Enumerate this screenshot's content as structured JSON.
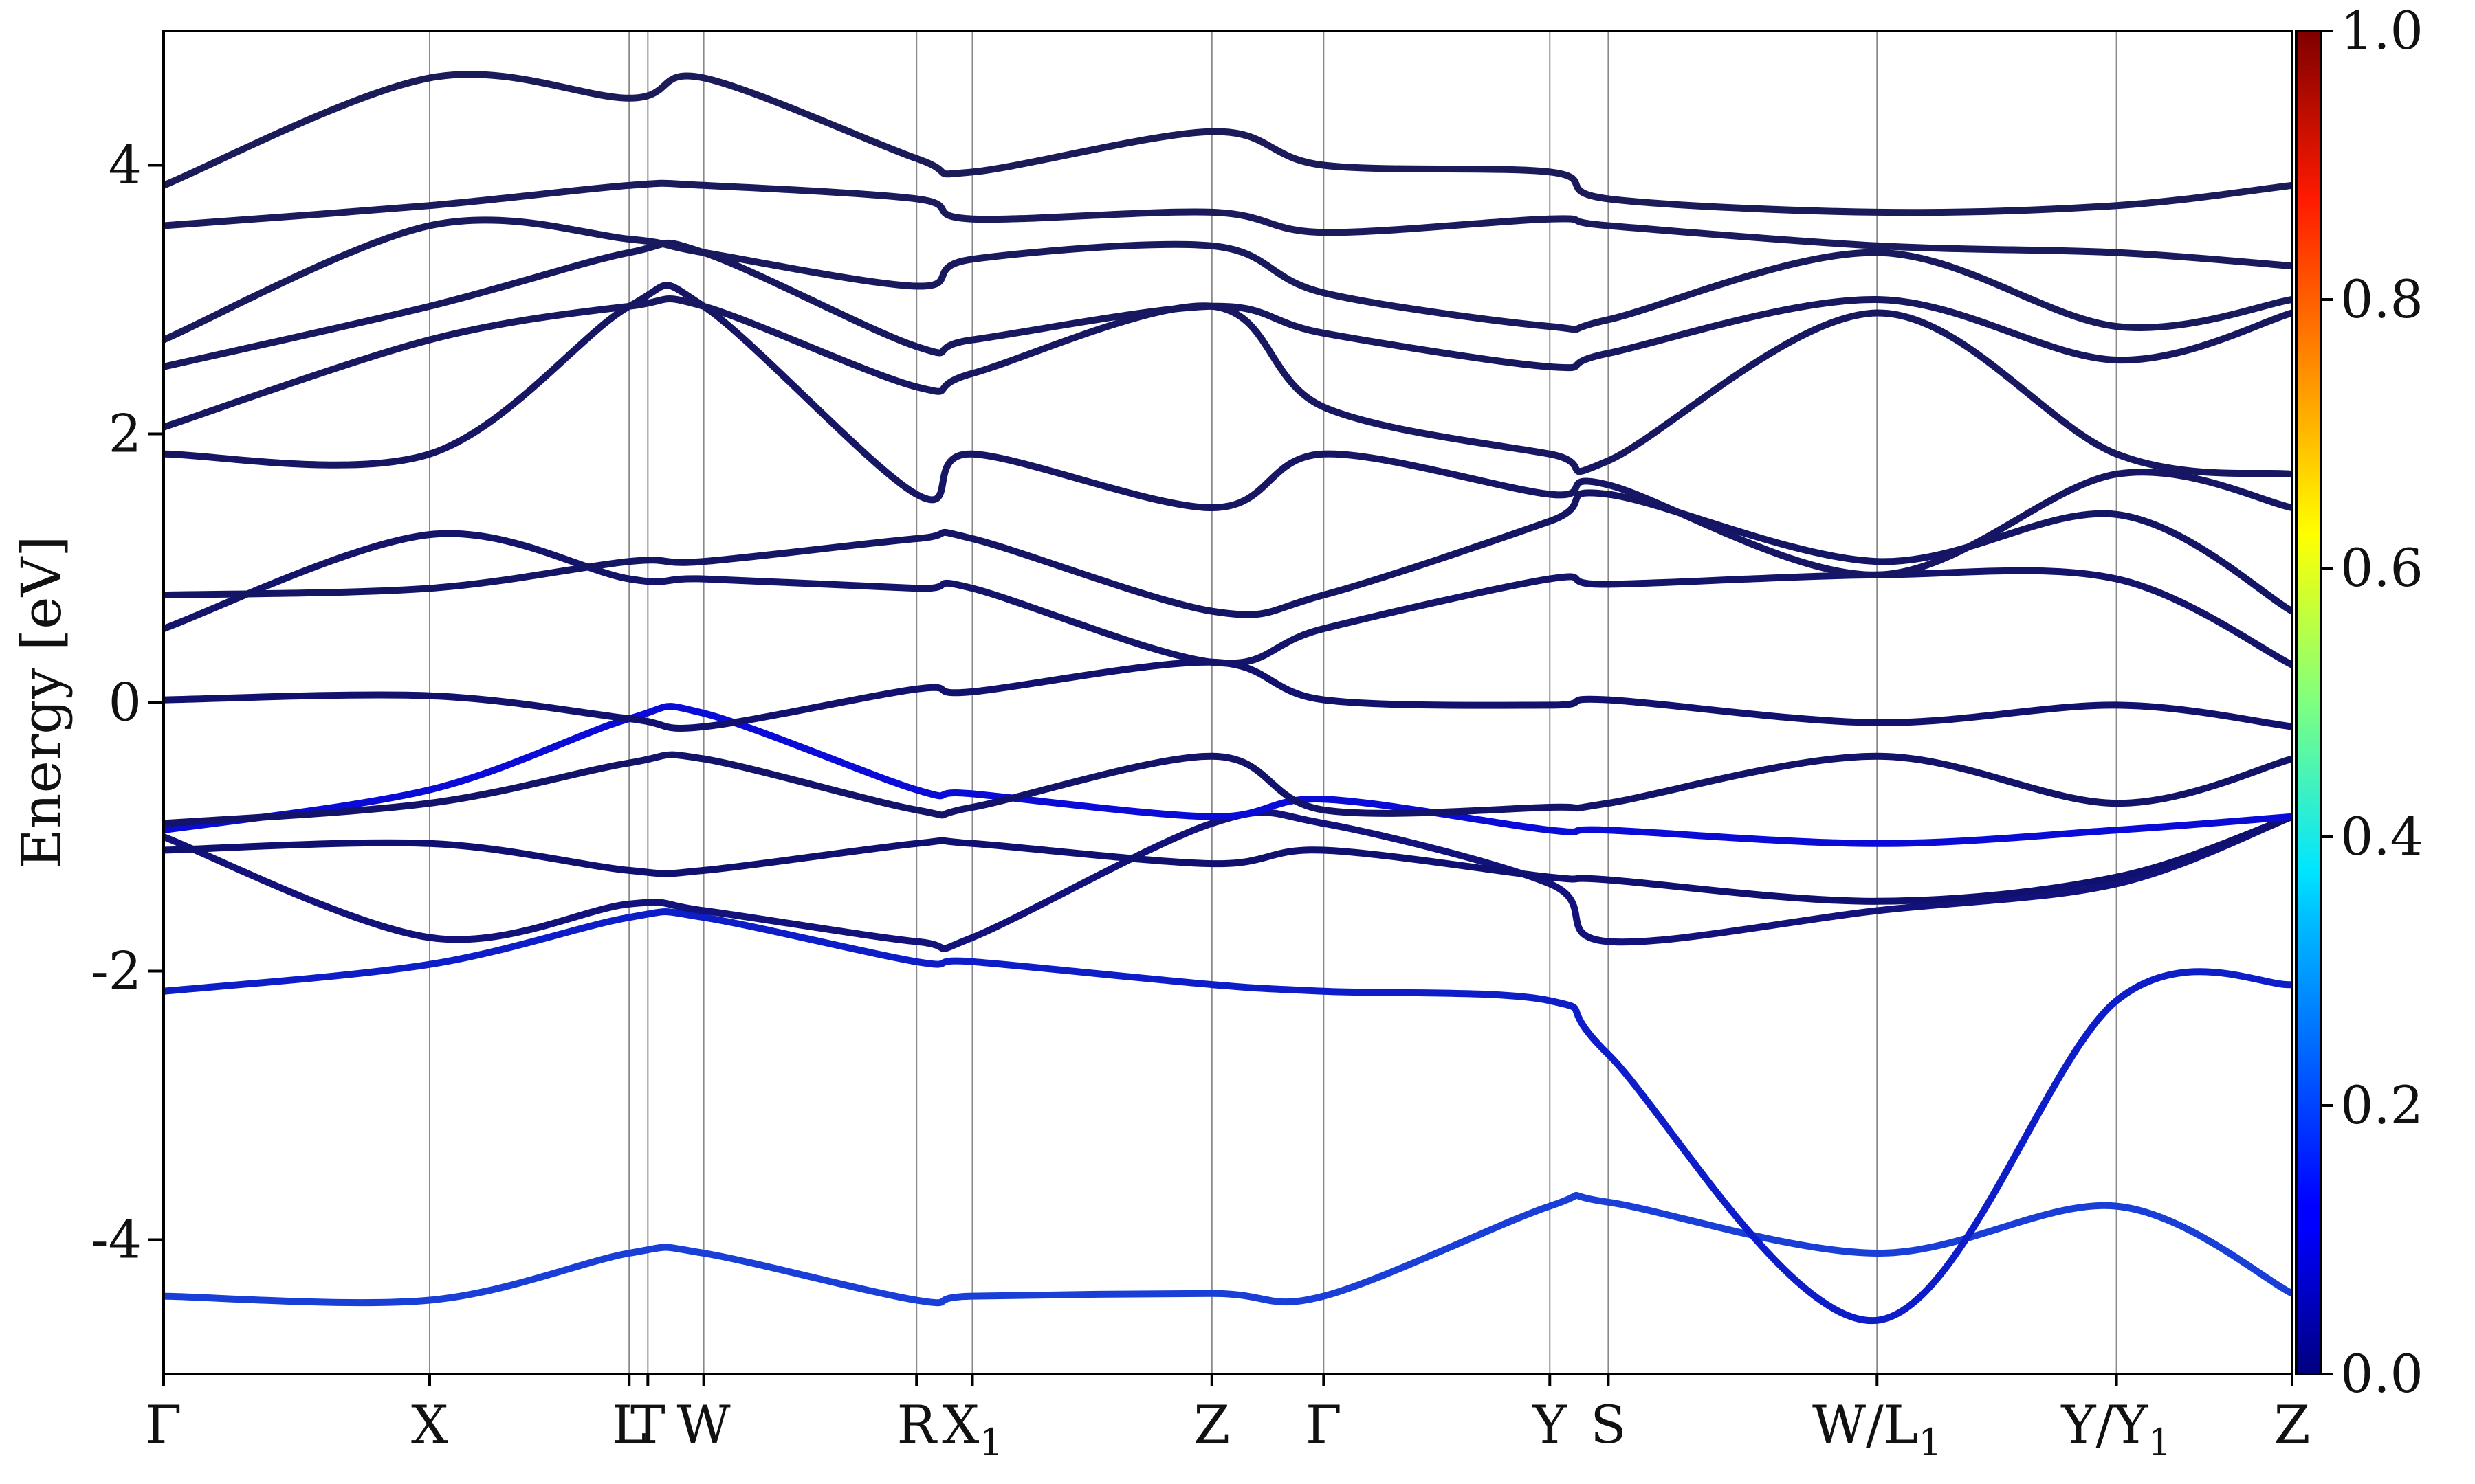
{
  "chart_data": {
    "type": "line",
    "title": "",
    "xlabel": "",
    "ylabel": "Energy [eV]",
    "ylim": [
      -5,
      5
    ],
    "yticks": [
      -4,
      -2,
      0,
      2,
      4
    ],
    "colorbar": {
      "colormap": "jet",
      "range": [
        0.0,
        1.0
      ],
      "ticks": [
        "0.0",
        "0.2",
        "0.4",
        "0.6",
        "0.8",
        "1.0"
      ]
    },
    "kpath": [
      {
        "label": "Γ",
        "sub": "",
        "pos": 0.0
      },
      {
        "label": "X",
        "sub": "",
        "pos": 1.0
      },
      {
        "label": "L",
        "sub": "",
        "pos": 1.75
      },
      {
        "label": "T",
        "sub": "",
        "pos": 1.82
      },
      {
        "label": "W",
        "sub": "",
        "pos": 2.03
      },
      {
        "label": "R",
        "sub": "",
        "pos": 2.83
      },
      {
        "label": "X",
        "sub": "1",
        "pos": 3.04
      },
      {
        "label": "Z",
        "sub": "",
        "pos": 3.94
      },
      {
        "label": "Γ",
        "sub": "",
        "pos": 4.36
      },
      {
        "label": "Y",
        "sub": "",
        "pos": 5.21
      },
      {
        "label": "S",
        "sub": "",
        "pos": 5.43
      },
      {
        "label": "W/L",
        "sub": "1",
        "pos": 6.44
      },
      {
        "label": "Y/Y",
        "sub": "1",
        "pos": 7.34
      },
      {
        "label": "Z",
        "sub": "",
        "pos": 8.0
      }
    ],
    "series": [
      {
        "color": "#1a3fd6",
        "weight": 0.18,
        "e": [
          -4.42,
          -4.45,
          -4.1,
          -4.1,
          -4.45,
          -4.42,
          -4.4,
          -4.42,
          -3.75,
          -3.72,
          -4.1,
          -3.75,
          -4.4
        ]
      },
      {
        "color": "#0d1ec9",
        "weight": 0.12,
        "e": [
          -2.15,
          -1.95,
          -1.6,
          -1.6,
          -1.93,
          -1.93,
          -2.1,
          -2.15,
          -2.22,
          -2.62,
          -4.6,
          -2.22,
          -2.1
        ]
      },
      {
        "color": "#12127a",
        "weight": 0.05,
        "e": [
          -1.0,
          -1.75,
          -1.5,
          -1.55,
          -1.78,
          -1.75,
          -0.9,
          -0.9,
          -1.35,
          -1.78,
          -1.55,
          -1.35,
          -0.85
        ]
      },
      {
        "color": "#101070",
        "weight": 0.05,
        "e": [
          -1.1,
          -1.05,
          -1.25,
          -1.25,
          -1.05,
          -1.05,
          -1.2,
          -1.1,
          -1.3,
          -1.32,
          -1.48,
          -1.3,
          -0.85
        ]
      },
      {
        "color": "#0b0bd8",
        "weight": 0.1,
        "e": [
          -0.95,
          -0.65,
          -0.12,
          -0.08,
          -0.65,
          -0.68,
          -0.85,
          -0.72,
          -0.95,
          -0.95,
          -1.05,
          -0.95,
          -0.85
        ]
      },
      {
        "color": "#131369",
        "weight": 0.04,
        "e": [
          -0.9,
          -0.75,
          -0.45,
          -0.42,
          -0.8,
          -0.78,
          -0.4,
          -0.8,
          -0.78,
          -0.75,
          -0.4,
          -0.75,
          -0.42
        ]
      },
      {
        "color": "#12126e",
        "weight": 0.04,
        "e": [
          0.02,
          0.05,
          -0.12,
          -0.18,
          0.1,
          0.08,
          0.3,
          0.02,
          -0.02,
          0.02,
          -0.15,
          -0.02,
          -0.18
        ]
      },
      {
        "color": "#14146a",
        "weight": 0.04,
        "e": [
          0.55,
          1.25,
          0.92,
          0.92,
          0.85,
          0.85,
          0.3,
          0.55,
          0.92,
          0.88,
          0.95,
          0.92,
          0.28
        ]
      },
      {
        "color": "#151566",
        "weight": 0.04,
        "e": [
          0.8,
          0.85,
          1.05,
          1.05,
          1.22,
          1.22,
          0.68,
          0.8,
          1.35,
          1.55,
          1.05,
          1.4,
          0.68
        ]
      },
      {
        "color": "#161664",
        "weight": 0.04,
        "e": [
          1.85,
          1.85,
          2.95,
          2.95,
          1.55,
          1.85,
          1.45,
          1.85,
          1.55,
          1.62,
          0.95,
          1.7,
          1.45
        ]
      },
      {
        "color": "#171762",
        "weight": 0.04,
        "e": [
          2.05,
          2.7,
          2.95,
          2.95,
          2.35,
          2.45,
          2.95,
          2.2,
          1.85,
          1.8,
          2.9,
          1.85,
          1.7
        ]
      },
      {
        "color": "#181860",
        "weight": 0.04,
        "e": [
          2.5,
          2.95,
          3.35,
          3.35,
          2.65,
          2.7,
          2.95,
          2.75,
          2.5,
          2.6,
          3.0,
          2.55,
          2.9
        ]
      },
      {
        "color": "#19195e",
        "weight": 0.04,
        "e": [
          2.7,
          3.55,
          3.45,
          3.35,
          3.1,
          3.3,
          3.4,
          3.05,
          2.8,
          2.85,
          3.35,
          2.8,
          3.0
        ]
      },
      {
        "color": "#1a1a5c",
        "weight": 0.04,
        "e": [
          3.55,
          3.7,
          3.85,
          3.85,
          3.75,
          3.6,
          3.65,
          3.5,
          3.6,
          3.55,
          3.4,
          3.35,
          3.25
        ]
      },
      {
        "color": "#1b1b5a",
        "weight": 0.04,
        "e": [
          3.85,
          4.65,
          4.5,
          4.65,
          4.05,
          3.95,
          4.25,
          4.0,
          3.95,
          3.75,
          3.65,
          3.7,
          3.85
        ]
      }
    ]
  }
}
